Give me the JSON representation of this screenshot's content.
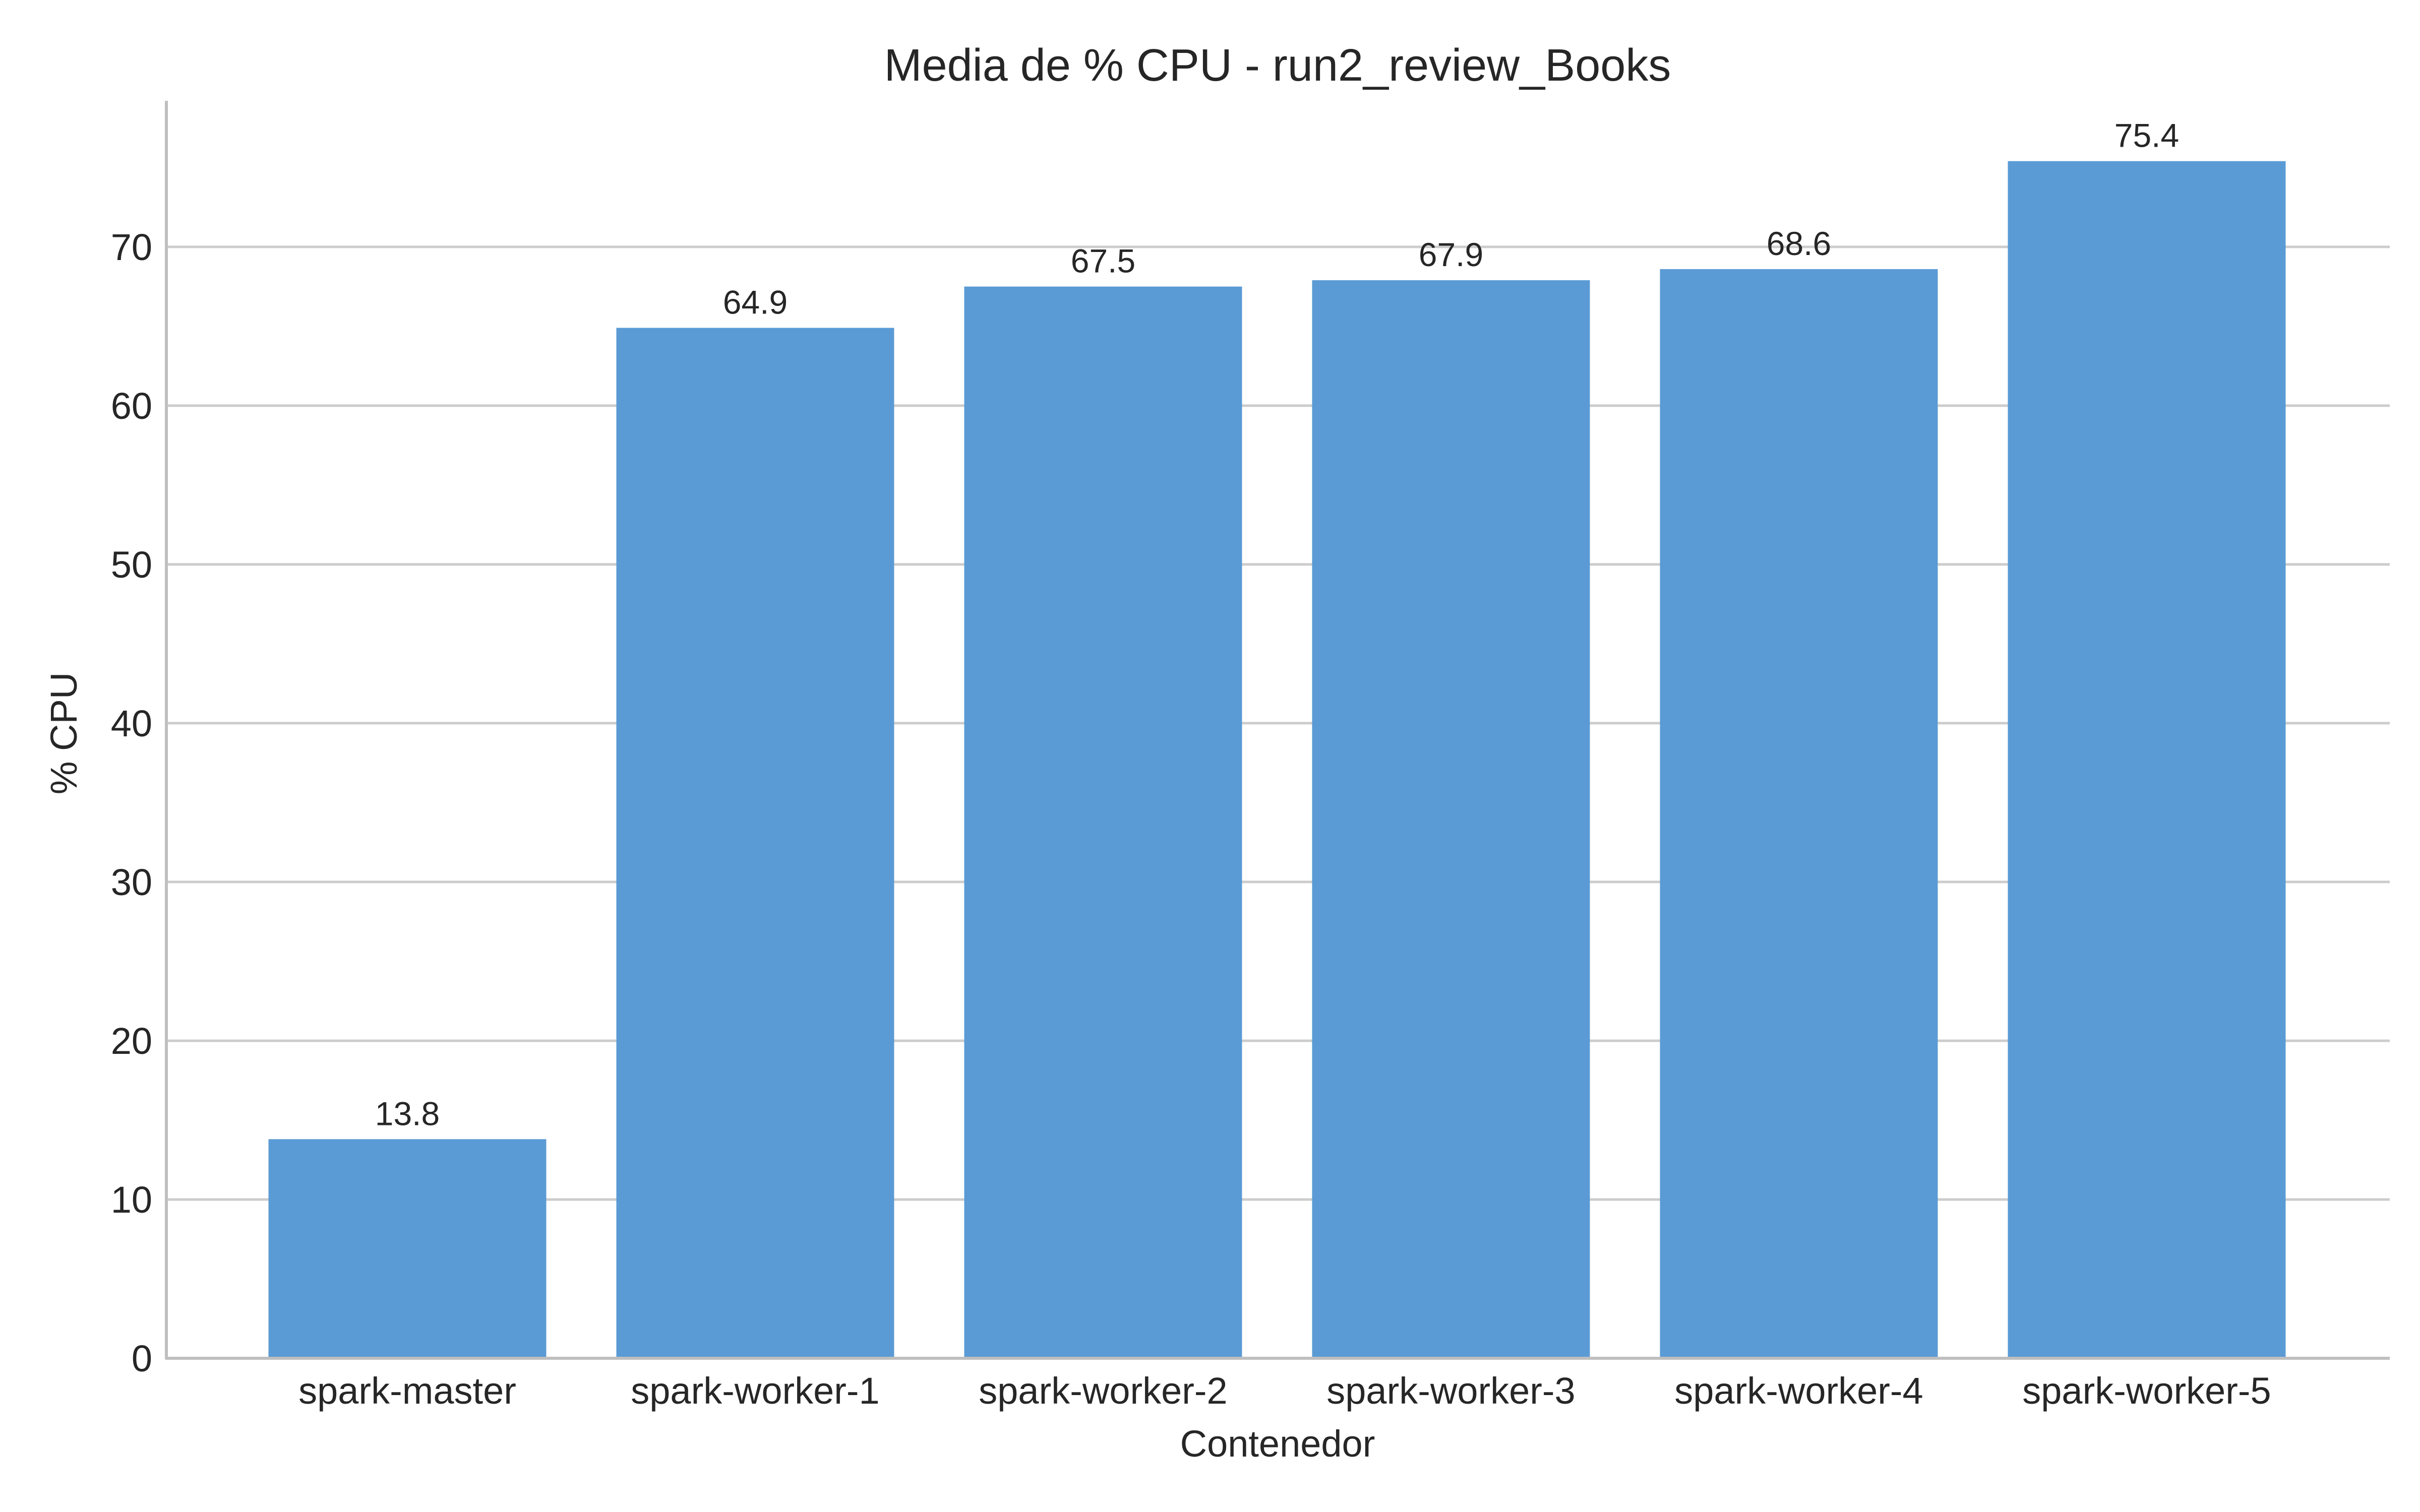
{
  "chart_data": {
    "type": "bar",
    "title": "Media de % CPU - run2_review_Books",
    "xlabel": "Contenedor",
    "ylabel": "% CPU",
    "categories": [
      "spark-master",
      "spark-worker-1",
      "spark-worker-2",
      "spark-worker-3",
      "spark-worker-4",
      "spark-worker-5"
    ],
    "values": [
      13.8,
      64.9,
      67.5,
      67.9,
      68.6,
      75.4
    ],
    "data_labels": [
      "13.8",
      "64.9",
      "67.5",
      "67.9",
      "68.6",
      "75.4"
    ],
    "yticks": [
      "0",
      "10",
      "20",
      "30",
      "40",
      "50",
      "60",
      "70"
    ],
    "ylim": [
      0,
      79.2
    ],
    "grid": "horizontal",
    "bar_color": "#5b9bd5",
    "grid_color": "#cccccc",
    "axis_color": "#bfbfbf",
    "text_color": "#262626"
  }
}
